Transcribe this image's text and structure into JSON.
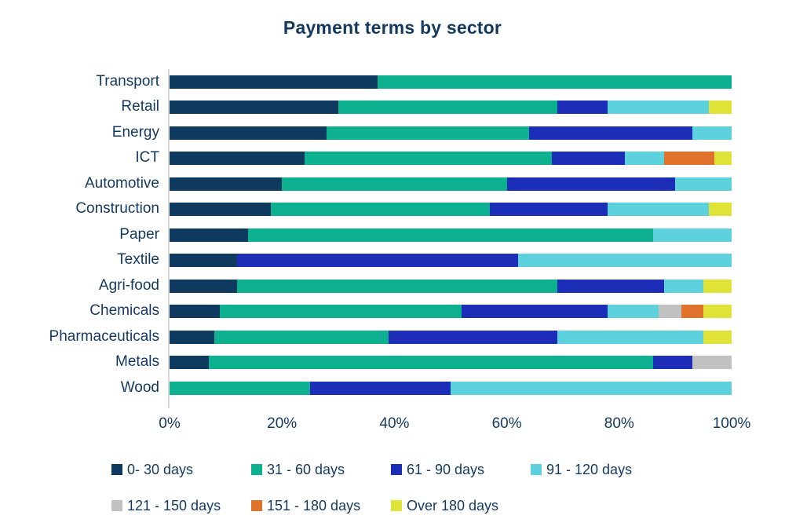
{
  "chart_data": {
    "type": "bar",
    "orientation": "horizontal",
    "stacked": true,
    "title": "Payment terms by sector",
    "xlabel": "",
    "ylabel": "",
    "grid": false,
    "legend_position": "bottom",
    "x_axis": {
      "min": 0,
      "max": 100,
      "unit": "%",
      "ticks": [
        "0%",
        "20%",
        "40%",
        "60%",
        "80%",
        "100%"
      ]
    },
    "categories": [
      "Transport",
      "Retail",
      "Energy",
      "ICT",
      "Automotive",
      "Construction",
      "Paper",
      "Textile",
      "Agri-food",
      "Chemicals",
      "Pharmaceuticals",
      "Metals",
      "Wood"
    ],
    "series": [
      {
        "name": "0- 30 days",
        "color": "#0d3a5e",
        "values": [
          37,
          30,
          28,
          24,
          20,
          18,
          14,
          12,
          12,
          9,
          8,
          7,
          0
        ]
      },
      {
        "name": "31 - 60 days",
        "color": "#0db18f",
        "values": [
          63,
          39,
          36,
          44,
          40,
          39,
          72,
          0,
          57,
          43,
          31,
          79,
          25
        ]
      },
      {
        "name": "61 - 90 days",
        "color": "#1c2eb8",
        "values": [
          0,
          9,
          29,
          13,
          30,
          21,
          0,
          50,
          19,
          26,
          30,
          7,
          25
        ]
      },
      {
        "name": "91 - 120 days",
        "color": "#5ed1de",
        "values": [
          0,
          18,
          7,
          7,
          10,
          18,
          14,
          38,
          7,
          9,
          26,
          0,
          50
        ]
      },
      {
        "name": "121 - 150 days",
        "color": "#c1c1c1",
        "values": [
          0,
          0,
          0,
          0,
          0,
          0,
          0,
          0,
          0,
          4,
          0,
          7,
          0
        ]
      },
      {
        "name": "151 - 180 days",
        "color": "#e0722c",
        "values": [
          0,
          0,
          0,
          9,
          0,
          0,
          0,
          0,
          0,
          4,
          0,
          0,
          0
        ]
      },
      {
        "name": "Over 180 days",
        "color": "#dfe337",
        "values": [
          0,
          4,
          0,
          3,
          0,
          4,
          0,
          0,
          5,
          5,
          5,
          0,
          0
        ]
      }
    ]
  },
  "colors": {
    "text": "#14395f",
    "axis_line": "#d9d9d9",
    "background": "#ffffff"
  }
}
